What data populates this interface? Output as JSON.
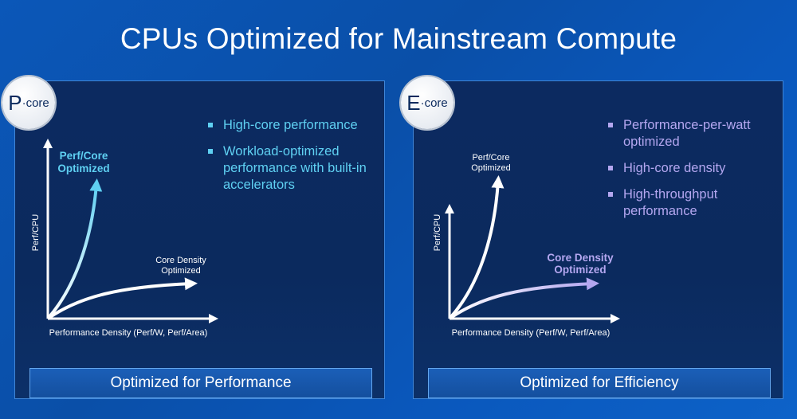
{
  "title": "CPUs Optimized for Mainstream Compute",
  "p_panel": {
    "badge_letter": "P",
    "badge_suffix": "·core",
    "bullets": [
      "High-core performance",
      "Workload-optimized performance with built-in accelerators"
    ],
    "curve_high_label_1": "Perf/Core",
    "curve_high_label_2": "Optimized",
    "curve_low_label_1": "Core Density",
    "curve_low_label_2": "Optimized",
    "y_axis_label": "Perf/CPU",
    "x_axis_label": "Performance Density (Perf/W, Perf/Area)",
    "footer": "Optimized for Performance",
    "highlight_color": "#5fd0f2"
  },
  "e_panel": {
    "badge_letter": "E",
    "badge_suffix": "·core",
    "bullets": [
      "Performance-per-watt optimized",
      "High-core density",
      "High-throughput performance"
    ],
    "curve_high_label_1": "Perf/Core",
    "curve_high_label_2": "Optimized",
    "curve_low_label_1": "Core Density",
    "curve_low_label_2": "Optimized",
    "y_axis_label": "Perf/CPU",
    "x_axis_label": "Performance Density (Perf/W, Perf/Area)",
    "footer": "Optimized for Efficiency",
    "highlight_color": "#b4a7f0"
  }
}
